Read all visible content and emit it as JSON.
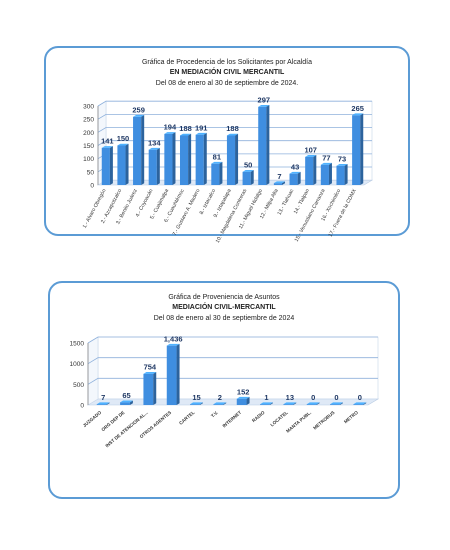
{
  "chart_data": [
    {
      "type": "bar",
      "title": "Gráfica de Procedencia de los Solicitantes por Alcaldía",
      "subtitle": "EN MEDIACIÓN CIVIL MERCANTIL",
      "period": "Del 08 de enero al 30 de septiembre de 2024.",
      "xlabel": "",
      "ylabel": "",
      "ylim": [
        0,
        300
      ],
      "yticks": [
        "0",
        "50",
        "100",
        "150",
        "200",
        "250",
        "300"
      ],
      "grid": true,
      "legend": "none",
      "color": "#3f8ee0",
      "categories": [
        "1.- Alvaro Obregón",
        "2.- Azcapotzalco",
        "3.- Benito Juárez",
        "4.- Coyoacán",
        "5.- Cuajimalpa",
        "6.- Cuauhtémoc",
        "7.- Gustavo A. Madero",
        "8.- Iztacalco",
        "9.- Iztapalapa",
        "10.- Magdalena Contreras",
        "11.- Miguel Hidalgo",
        "12.- Milpa Alta",
        "13.- Tlahuac",
        "14.- Tlalpan",
        "15.- Venustiano Carranza",
        "16.- Xochimilco",
        "17.- Fuera de la CDMX"
      ],
      "values": [
        141,
        150,
        259,
        134,
        194,
        188,
        191,
        81,
        188,
        50,
        297,
        7,
        43,
        107,
        77,
        73,
        265
      ],
      "value_labels": [
        "141",
        "150",
        "259",
        "134",
        "194",
        "188",
        "191",
        "81",
        "188",
        "50",
        "297",
        "7",
        "43",
        "107",
        "77",
        "73",
        "265"
      ]
    },
    {
      "type": "bar",
      "title": "Gráfica de Proveniencia de Asuntos",
      "subtitle": "MEDIACIÓN CIVIL-MERCANTIL",
      "period": "Del  08 de enero al  30 de septiembre de  2024",
      "xlabel": "",
      "ylabel": "",
      "ylim": [
        0,
        1500
      ],
      "yticks": [
        "0",
        "500",
        "1000",
        "1500"
      ],
      "grid": true,
      "legend": "none",
      "color": "#3f8ee0",
      "categories": [
        "JUZGADO",
        "ORG DEP DE",
        "INST DE ATENCION AL...",
        "OTROS AGENTES",
        "CARTEL",
        "T.V.",
        "INTERNET",
        "RADIO",
        "LOCATEL",
        "MANTA PUBL.",
        "METROBUS",
        "METRO"
      ],
      "values": [
        7,
        65,
        754,
        1436,
        15,
        2,
        152,
        1,
        13,
        0,
        0,
        0
      ],
      "value_labels": [
        "7",
        "65",
        "754",
        "1,436",
        "15",
        "2",
        "152",
        "1",
        "13",
        "0",
        "0",
        "0"
      ]
    }
  ]
}
